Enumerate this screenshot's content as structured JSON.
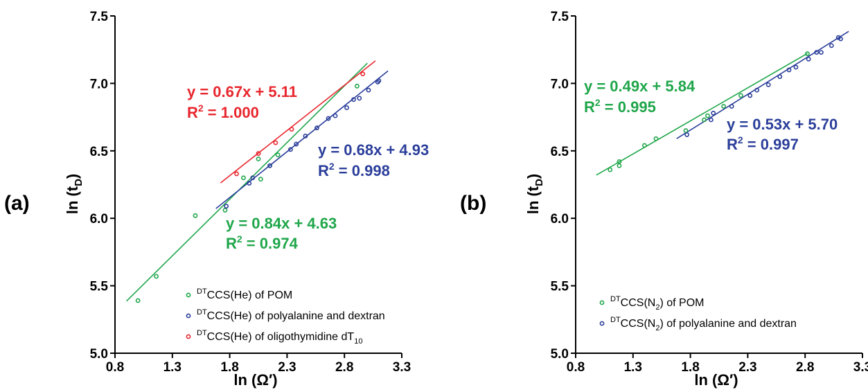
{
  "panels": [
    {
      "label": "(a)",
      "xlabel": "ln (Ω′)",
      "ylabel_main": "ln (t",
      "ylabel_sub": "D",
      "ylabel_end": ")",
      "xlim": [
        0.8,
        3.3
      ],
      "ylim": [
        5.0,
        7.5
      ],
      "xticks": [
        "0.8",
        "1.3",
        "1.8",
        "2.3",
        "2.8",
        "3.3"
      ],
      "yticks": [
        "5.0",
        "5.5",
        "6.0",
        "6.5",
        "7.0",
        "7.5"
      ]
    },
    {
      "label": "(b)",
      "xlabel": "ln (Ω′)",
      "ylabel_main": "ln (t",
      "ylabel_sub": "D",
      "ylabel_end": ")",
      "xlim": [
        0.8,
        3.3
      ],
      "ylim": [
        5.0,
        7.5
      ],
      "xticks": [
        "0.8",
        "1.3",
        "1.8",
        "2.3",
        "2.8",
        "3.3"
      ],
      "yticks": [
        "5.0",
        "5.5",
        "6.0",
        "6.5",
        "7.0",
        "7.5"
      ]
    }
  ],
  "colors": {
    "green": "#1fa64a",
    "blue": "#2b3e9a",
    "red": "#e8262d"
  },
  "chart_data": [
    {
      "type": "scatter",
      "xlim": [
        0.8,
        3.3
      ],
      "ylim": [
        5.0,
        7.5
      ],
      "series": [
        {
          "legend_pre": "",
          "legend_sup": "DT",
          "legend_main": "CCS(He) of POM",
          "legend_sub": "",
          "legend_post": "",
          "color": "green",
          "points": [
            [
              1.0,
              5.39
            ],
            [
              1.16,
              5.57
            ],
            [
              1.5,
              6.02
            ],
            [
              1.76,
              6.06
            ],
            [
              1.92,
              6.3
            ],
            [
              2.05,
              6.44
            ],
            [
              2.07,
              6.29
            ],
            [
              2.15,
              6.39
            ],
            [
              2.22,
              6.47
            ],
            [
              2.91,
              6.98
            ]
          ],
          "fit": {
            "slope": 0.84,
            "intercept": 4.63,
            "x_from": 0.9,
            "x_to": 3.0
          },
          "eq_pre": "y = 0.84x + 4.63",
          "r2_pre": "R",
          "r2_sup": "2",
          "r2_post": " = 0.974"
        },
        {
          "legend_pre": "",
          "legend_sup": "DT",
          "legend_main": "CCS(He) of polyalanine and dextran",
          "legend_sub": "",
          "legend_post": "",
          "color": "blue",
          "points": [
            [
              1.77,
              6.09
            ],
            [
              1.97,
              6.26
            ],
            [
              2.0,
              6.3
            ],
            [
              2.15,
              6.39
            ],
            [
              2.33,
              6.51
            ],
            [
              2.38,
              6.55
            ],
            [
              2.46,
              6.61
            ],
            [
              2.56,
              6.67
            ],
            [
              2.66,
              6.74
            ],
            [
              2.72,
              6.76
            ],
            [
              2.82,
              6.82
            ],
            [
              2.88,
              6.88
            ],
            [
              2.93,
              6.89
            ],
            [
              3.01,
              6.95
            ],
            [
              3.09,
              7.01
            ],
            [
              3.1,
              7.02
            ]
          ],
          "fit": {
            "slope": 0.68,
            "intercept": 4.93,
            "x_from": 1.68,
            "x_to": 3.18
          },
          "eq_pre": "y = 0.68x + 4.93",
          "r2_pre": "R",
          "r2_sup": "2",
          "r2_post": " = 0.998"
        },
        {
          "legend_pre": "",
          "legend_sup": "DT",
          "legend_main": "CCS(He) of oligothymidine dT",
          "legend_sub": "10",
          "legend_post": "",
          "color": "red",
          "points": [
            [
              1.86,
              6.33
            ],
            [
              2.05,
              6.48
            ],
            [
              2.2,
              6.56
            ],
            [
              2.34,
              6.66
            ],
            [
              2.96,
              7.07
            ]
          ],
          "fit": {
            "slope": 0.67,
            "intercept": 5.11,
            "x_from": 1.72,
            "x_to": 3.07
          },
          "eq_pre": "y = 0.67x + 5.11",
          "r2_pre": "R",
          "r2_sup": "2",
          "r2_post": " = 1.000"
        }
      ]
    },
    {
      "type": "scatter",
      "xlim": [
        0.8,
        3.3
      ],
      "ylim": [
        5.0,
        7.5
      ],
      "series": [
        {
          "legend_pre": "",
          "legend_sup": "DT",
          "legend_main": "CCS(N",
          "legend_sub": "2",
          "legend_post": ") of POM",
          "color": "green",
          "points": [
            [
              1.1,
              6.36
            ],
            [
              1.18,
              6.39
            ],
            [
              1.18,
              6.42
            ],
            [
              1.4,
              6.54
            ],
            [
              1.5,
              6.59
            ],
            [
              1.76,
              6.65
            ],
            [
              1.92,
              6.73
            ],
            [
              1.95,
              6.76
            ],
            [
              2.09,
              6.83
            ],
            [
              2.24,
              6.91
            ],
            [
              2.82,
              7.22
            ]
          ],
          "fit": {
            "slope": 0.49,
            "intercept": 5.84,
            "x_from": 0.98,
            "x_to": 2.82
          },
          "eq_pre": "y = 0.49x + 5.84",
          "r2_pre": "R",
          "r2_sup": "2",
          "r2_post": " = 0.995"
        },
        {
          "legend_pre": "",
          "legend_sup": "DT",
          "legend_main": "CCS(N",
          "legend_sub": "2",
          "legend_post": ") of polyalanine and dextran",
          "color": "blue",
          "points": [
            [
              1.77,
              6.62
            ],
            [
              1.98,
              6.73
            ],
            [
              2.0,
              6.78
            ],
            [
              2.16,
              6.83
            ],
            [
              2.32,
              6.91
            ],
            [
              2.38,
              6.95
            ],
            [
              2.48,
              6.99
            ],
            [
              2.58,
              7.05
            ],
            [
              2.66,
              7.1
            ],
            [
              2.72,
              7.12
            ],
            [
              2.83,
              7.18
            ],
            [
              2.9,
              7.23
            ],
            [
              2.94,
              7.23
            ],
            [
              3.03,
              7.28
            ],
            [
              3.09,
              7.34
            ],
            [
              3.11,
              7.33
            ]
          ],
          "fit": {
            "slope": 0.53,
            "intercept": 5.7,
            "x_from": 1.68,
            "x_to": 3.18
          },
          "eq_pre": "y = 0.53x + 5.70",
          "r2_pre": "R",
          "r2_sup": "2",
          "r2_post": " = 0.997"
        }
      ]
    }
  ]
}
